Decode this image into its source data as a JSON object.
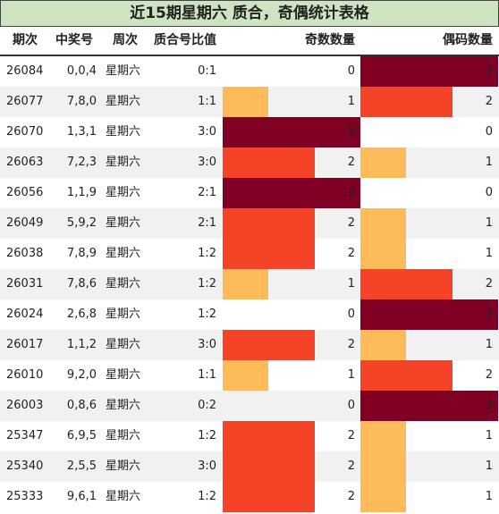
{
  "title": "近15期星期六 质合，奇偶统计表格",
  "headers": {
    "period": "期次",
    "winning": "中奖号",
    "weekday": "周次",
    "ratio": "质合号比值",
    "odd": "奇数数量",
    "even": "偶码数量"
  },
  "colors": {
    "level1": "#fdbb5a",
    "level2": "#f44327",
    "level3": "#800024",
    "title_bg": "#cde4c1"
  },
  "chart_data": {
    "type": "table",
    "max_count": 3,
    "rows": [
      {
        "period": "26084",
        "numbers": "0,0,4",
        "weekday": "星期六",
        "ratio": "0:1",
        "odd": 0,
        "even": 3
      },
      {
        "period": "26077",
        "numbers": "7,8,0",
        "weekday": "星期六",
        "ratio": "1:1",
        "odd": 1,
        "even": 2
      },
      {
        "period": "26070",
        "numbers": "1,3,1",
        "weekday": "星期六",
        "ratio": "3:0",
        "odd": 3,
        "even": 0
      },
      {
        "period": "26063",
        "numbers": "7,2,3",
        "weekday": "星期六",
        "ratio": "3:0",
        "odd": 2,
        "even": 1
      },
      {
        "period": "26056",
        "numbers": "1,1,9",
        "weekday": "星期六",
        "ratio": "2:1",
        "odd": 3,
        "even": 0
      },
      {
        "period": "26049",
        "numbers": "5,9,2",
        "weekday": "星期六",
        "ratio": "2:1",
        "odd": 2,
        "even": 1
      },
      {
        "period": "26038",
        "numbers": "7,8,9",
        "weekday": "星期六",
        "ratio": "1:2",
        "odd": 2,
        "even": 1
      },
      {
        "period": "26031",
        "numbers": "7,8,6",
        "weekday": "星期六",
        "ratio": "1:2",
        "odd": 1,
        "even": 2
      },
      {
        "period": "26024",
        "numbers": "2,6,8",
        "weekday": "星期六",
        "ratio": "1:2",
        "odd": 0,
        "even": 3
      },
      {
        "period": "26017",
        "numbers": "1,1,2",
        "weekday": "星期六",
        "ratio": "3:0",
        "odd": 2,
        "even": 1
      },
      {
        "period": "26010",
        "numbers": "9,2,0",
        "weekday": "星期六",
        "ratio": "1:1",
        "odd": 1,
        "even": 2
      },
      {
        "period": "26003",
        "numbers": "0,8,6",
        "weekday": "星期六",
        "ratio": "0:2",
        "odd": 0,
        "even": 3
      },
      {
        "period": "25347",
        "numbers": "6,9,5",
        "weekday": "星期六",
        "ratio": "1:2",
        "odd": 2,
        "even": 1
      },
      {
        "period": "25340",
        "numbers": "2,5,5",
        "weekday": "星期六",
        "ratio": "3:0",
        "odd": 2,
        "even": 1
      },
      {
        "period": "25333",
        "numbers": "9,6,1",
        "weekday": "星期六",
        "ratio": "1:2",
        "odd": 2,
        "even": 1
      }
    ]
  }
}
